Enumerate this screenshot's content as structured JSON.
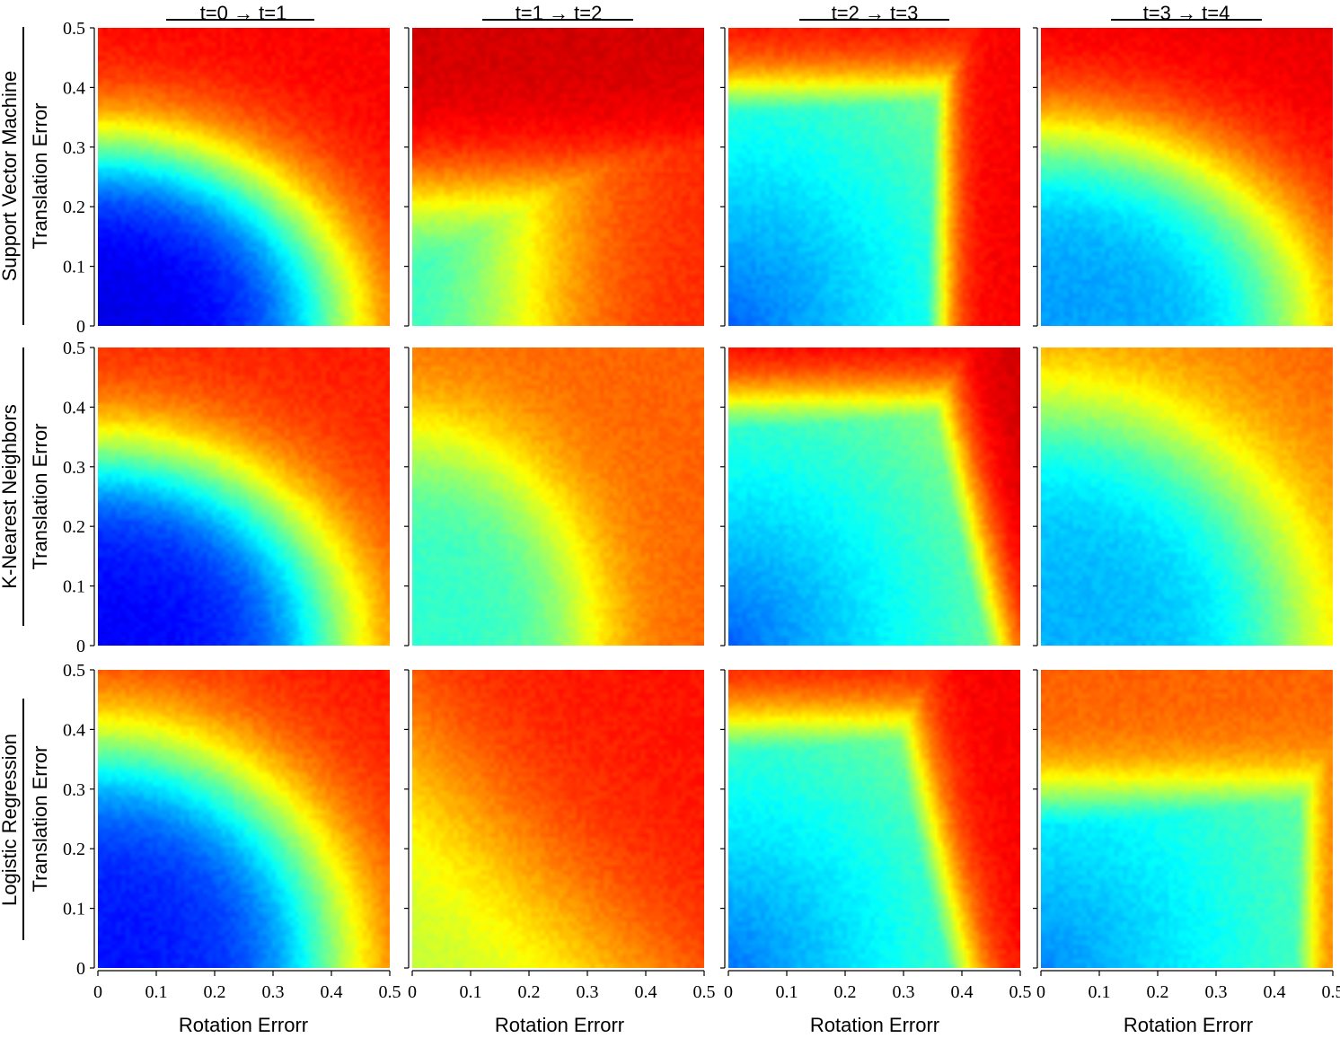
{
  "chart_data": {
    "type": "heatmap",
    "columns": [
      "t=0 → t=1",
      "t=1 → t=2",
      "t=2 → t=3",
      "t=3 → t=4"
    ],
    "rows": [
      "Support Vector Machine",
      "K-Nearest Neighbors",
      "Logistic Regression"
    ],
    "xlabel": "Rotation Errorr",
    "ylabel": "Translation Error",
    "xlim": [
      0,
      0.5
    ],
    "ylim": [
      0,
      0.5
    ],
    "x_ticks": [
      "0",
      "0.1",
      "0.2",
      "0.3",
      "0.4",
      "0.5"
    ],
    "y_ticks": [
      "0",
      "0.1",
      "0.2",
      "0.3",
      "0.4",
      "0.5"
    ],
    "colormap": "jet",
    "panels": [
      {
        "row": 0,
        "col": 0,
        "field": "radial",
        "r0": 0.3,
        "rx": 0.4,
        "ry": 0.3,
        "min": 0.1,
        "max": 0.88
      },
      {
        "row": 0,
        "col": 1,
        "field": "corner-transition",
        "xb": 0.2,
        "yb": 0.22,
        "min": 0.4,
        "max": 0.92
      },
      {
        "row": 0,
        "col": 2,
        "field": "box",
        "xb": 0.36,
        "yb": 0.39,
        "min": 0.22,
        "max": 0.88
      },
      {
        "row": 0,
        "col": 3,
        "field": "radial",
        "r0": 0.42,
        "rx": 0.45,
        "ry": 0.32,
        "min": 0.28,
        "max": 0.9
      },
      {
        "row": 1,
        "col": 0,
        "field": "radial",
        "r0": 0.3,
        "rx": 0.4,
        "ry": 0.32,
        "min": 0.12,
        "max": 0.85
      },
      {
        "row": 1,
        "col": 1,
        "field": "radial",
        "r0": 0.42,
        "rx": 0.3,
        "ry": 0.35,
        "min": 0.42,
        "max": 0.78
      },
      {
        "row": 1,
        "col": 2,
        "field": "box-diag",
        "xb": 0.36,
        "yb": 0.4,
        "min": 0.22,
        "max": 0.92
      },
      {
        "row": 1,
        "col": 3,
        "field": "radial",
        "r0": 0.42,
        "rx": 0.44,
        "ry": 0.4,
        "min": 0.3,
        "max": 0.78
      },
      {
        "row": 2,
        "col": 0,
        "field": "radial",
        "r0": 0.32,
        "rx": 0.4,
        "ry": 0.37,
        "min": 0.14,
        "max": 0.86
      },
      {
        "row": 2,
        "col": 1,
        "field": "diag",
        "d0": 0.35,
        "min": 0.55,
        "max": 0.86
      },
      {
        "row": 2,
        "col": 2,
        "field": "box-diag",
        "xb": 0.3,
        "yb": 0.4,
        "min": 0.24,
        "max": 0.88
      },
      {
        "row": 2,
        "col": 3,
        "field": "box",
        "xb": 0.45,
        "yb": 0.29,
        "min": 0.26,
        "max": 0.78
      }
    ]
  }
}
